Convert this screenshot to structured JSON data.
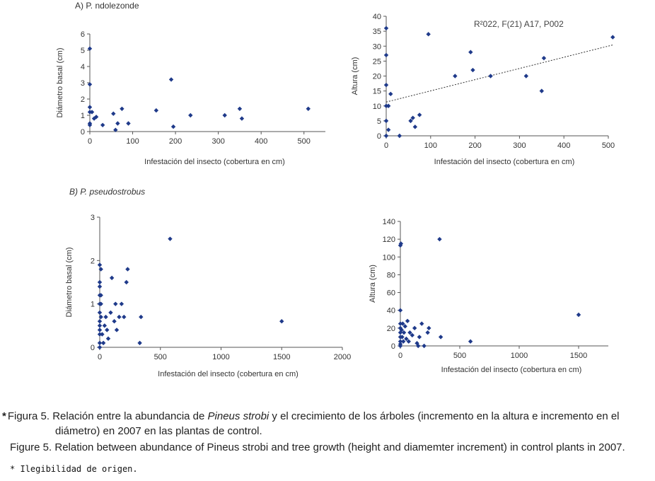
{
  "panel_labels": {
    "a": "A) P. ndolezonde",
    "b": "B) P. pseudostrobus"
  },
  "stats_annotation": "R²022, F(21) A17, P002",
  "chart_data": [
    {
      "id": "a-left",
      "type": "scatter",
      "xlabel": "Infestación del insecto (cobertura en cm)",
      "ylabel": "Diámetro basal (cm)",
      "xlim": [
        0,
        550
      ],
      "ylim": [
        0,
        6
      ],
      "xticks": [
        0,
        100,
        200,
        300,
        400,
        500
      ],
      "yticks": [
        0,
        1,
        2,
        3,
        4,
        5,
        6
      ],
      "points": [
        [
          0,
          5.1
        ],
        [
          0,
          2.9
        ],
        [
          0,
          1.5
        ],
        [
          0,
          1.2
        ],
        [
          0,
          0.5
        ],
        [
          0,
          0.4
        ],
        [
          5,
          1.2
        ],
        [
          10,
          0.8
        ],
        [
          15,
          0.9
        ],
        [
          30,
          0.4
        ],
        [
          55,
          1.1
        ],
        [
          60,
          0.1
        ],
        [
          65,
          0.5
        ],
        [
          75,
          1.4
        ],
        [
          90,
          0.5
        ],
        [
          155,
          1.3
        ],
        [
          190,
          3.2
        ],
        [
          195,
          0.3
        ],
        [
          235,
          1.0
        ],
        [
          315,
          1.0
        ],
        [
          350,
          1.4
        ],
        [
          355,
          0.8
        ],
        [
          510,
          1.4
        ]
      ]
    },
    {
      "id": "a-right",
      "type": "scatter",
      "xlabel": "Infestación del insecto (cobertura en cm)",
      "ylabel": "Altura (cm)",
      "xlim": [
        0,
        500
      ],
      "ylim": [
        0,
        40
      ],
      "xticks": [
        0,
        100,
        200,
        300,
        400,
        500
      ],
      "yticks": [
        0,
        5,
        10,
        15,
        20,
        25,
        30,
        35,
        40
      ],
      "points": [
        [
          0,
          36
        ],
        [
          0,
          27
        ],
        [
          0,
          17
        ],
        [
          0,
          10
        ],
        [
          0,
          5
        ],
        [
          0,
          0
        ],
        [
          5,
          2
        ],
        [
          5,
          10
        ],
        [
          10,
          14
        ],
        [
          30,
          0
        ],
        [
          55,
          5
        ],
        [
          60,
          6
        ],
        [
          65,
          3
        ],
        [
          75,
          7
        ],
        [
          95,
          34
        ],
        [
          155,
          20
        ],
        [
          190,
          28
        ],
        [
          195,
          22
        ],
        [
          235,
          20
        ],
        [
          315,
          20
        ],
        [
          350,
          15
        ],
        [
          355,
          26
        ],
        [
          510,
          33
        ]
      ],
      "trendline": {
        "x": [
          0,
          510
        ],
        "y": [
          11.3,
          30.4
        ]
      }
    },
    {
      "id": "b-left",
      "type": "scatter",
      "xlabel": "Infestación del insecto (cobertura en cm)",
      "ylabel": "Diámetro basal (cm)",
      "xlim": [
        0,
        2000
      ],
      "ylim": [
        0,
        3
      ],
      "xticks": [
        0,
        500,
        1000,
        1500,
        2000
      ],
      "yticks": [
        0,
        1,
        2,
        3
      ],
      "points": [
        [
          0,
          1.9
        ],
        [
          0,
          1.5
        ],
        [
          0,
          1.4
        ],
        [
          0,
          1.2
        ],
        [
          0,
          1.0
        ],
        [
          0,
          0.8
        ],
        [
          0,
          0.6
        ],
        [
          0,
          0.5
        ],
        [
          0,
          0.4
        ],
        [
          0,
          0.3
        ],
        [
          0,
          0.1
        ],
        [
          0,
          0.0
        ],
        [
          10,
          1.8
        ],
        [
          10,
          1.2
        ],
        [
          10,
          1.0
        ],
        [
          10,
          0.7
        ],
        [
          20,
          0.3
        ],
        [
          30,
          0.1
        ],
        [
          40,
          0.5
        ],
        [
          50,
          0.7
        ],
        [
          60,
          0.4
        ],
        [
          70,
          0.2
        ],
        [
          90,
          0.8
        ],
        [
          100,
          1.6
        ],
        [
          120,
          0.6
        ],
        [
          130,
          1.0
        ],
        [
          140,
          0.4
        ],
        [
          160,
          0.7
        ],
        [
          180,
          1.0
        ],
        [
          200,
          0.7
        ],
        [
          220,
          1.5
        ],
        [
          230,
          1.8
        ],
        [
          330,
          0.1
        ],
        [
          340,
          0.7
        ],
        [
          580,
          2.5
        ],
        [
          1500,
          0.6
        ]
      ]
    },
    {
      "id": "b-right",
      "type": "scatter",
      "xlabel": "Infestación del insecto (cobertura en cm)",
      "ylabel": "Altura (cm)",
      "xlim": [
        0,
        1750
      ],
      "ylim": [
        0,
        140
      ],
      "xticks": [
        0,
        500,
        1000,
        1500
      ],
      "yticks": [
        0,
        20,
        40,
        60,
        80,
        100,
        120,
        140
      ],
      "points": [
        [
          0,
          113
        ],
        [
          0,
          40
        ],
        [
          0,
          25
        ],
        [
          0,
          20
        ],
        [
          0,
          15
        ],
        [
          0,
          10
        ],
        [
          0,
          5
        ],
        [
          0,
          2
        ],
        [
          0,
          0
        ],
        [
          5,
          115
        ],
        [
          10,
          18
        ],
        [
          15,
          10
        ],
        [
          20,
          25
        ],
        [
          25,
          5
        ],
        [
          30,
          15
        ],
        [
          40,
          22
        ],
        [
          50,
          8
        ],
        [
          60,
          28
        ],
        [
          70,
          5
        ],
        [
          80,
          15
        ],
        [
          100,
          12
        ],
        [
          120,
          20
        ],
        [
          140,
          3
        ],
        [
          160,
          10
        ],
        [
          180,
          25
        ],
        [
          200,
          0
        ],
        [
          230,
          15
        ],
        [
          240,
          20
        ],
        [
          330,
          120
        ],
        [
          340,
          10
        ],
        [
          590,
          5
        ],
        [
          1500,
          35
        ],
        [
          150,
          0
        ]
      ]
    }
  ],
  "caption": {
    "star": "*",
    "es_line1_a": "Figura 5. Relación entre la abundancia de ",
    "es_italic": "Pineus strobi",
    "es_line1_b": " y el crecimiento de los árboles (incremento en la altura e incremento en el",
    "es_line2": "diámetro) en 2007 en las plantas de control.",
    "en": "Figure 5. Relation between abundance of Pineus strobi and tree growth (height  and diamemter increment) in control plants in  2007.",
    "footnote": "* Ilegibilidad de origen."
  },
  "colors": {
    "marker": "#1f3a8a",
    "axis": "#555555",
    "trend": "#333333"
  }
}
